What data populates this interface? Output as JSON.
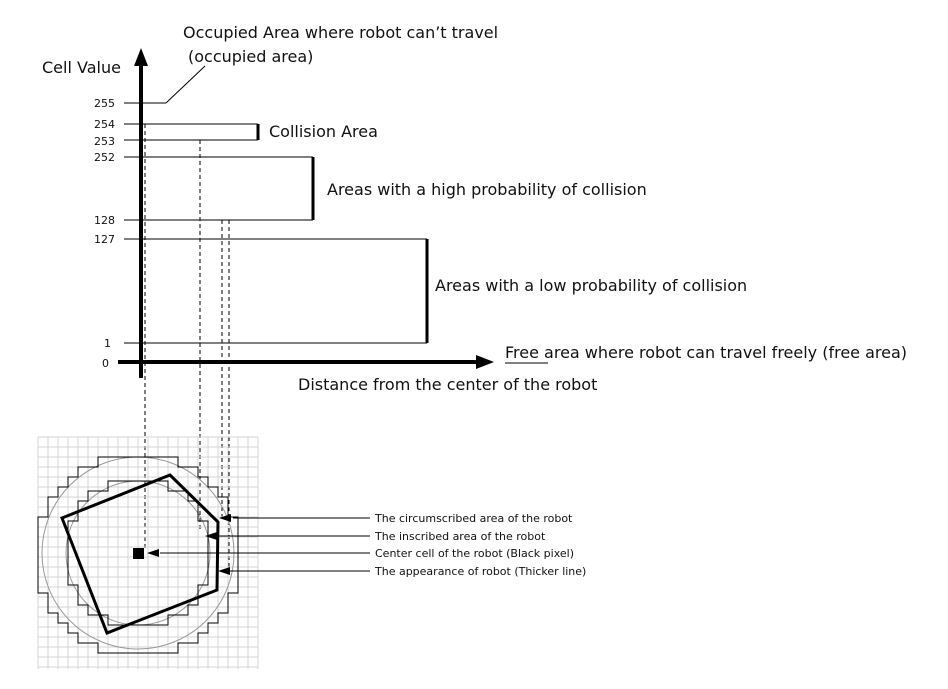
{
  "labels": {
    "occupied_line1": "Occupied Area where robot can’t travel",
    "occupied_line2": "(occupied area)",
    "y_axis": "Cell Value",
    "x_axis": "Distance from the center of the robot",
    "free_area": "Free area where robot can travel freely  (free area)",
    "collision": "Collision Area",
    "high_prob": "Areas with a high probability of collision",
    "low_prob": "Areas with a low probability of collision"
  },
  "ticks": {
    "t255": "255",
    "t254": "254",
    "t253": "253",
    "t252": "252",
    "t128": "128",
    "t127": "127",
    "t1": "1",
    "t0": "0"
  },
  "legend": {
    "circumscribed": "The circumscribed area of the robot",
    "inscribed": "The inscribed area of the robot",
    "center": "Center cell of the robot (Black pixel)",
    "appearance": "The appearance of robot (Thicker line)"
  },
  "colors": {
    "ink": "#000000",
    "grid": "#d4d4d4",
    "circle": "#999999"
  }
}
